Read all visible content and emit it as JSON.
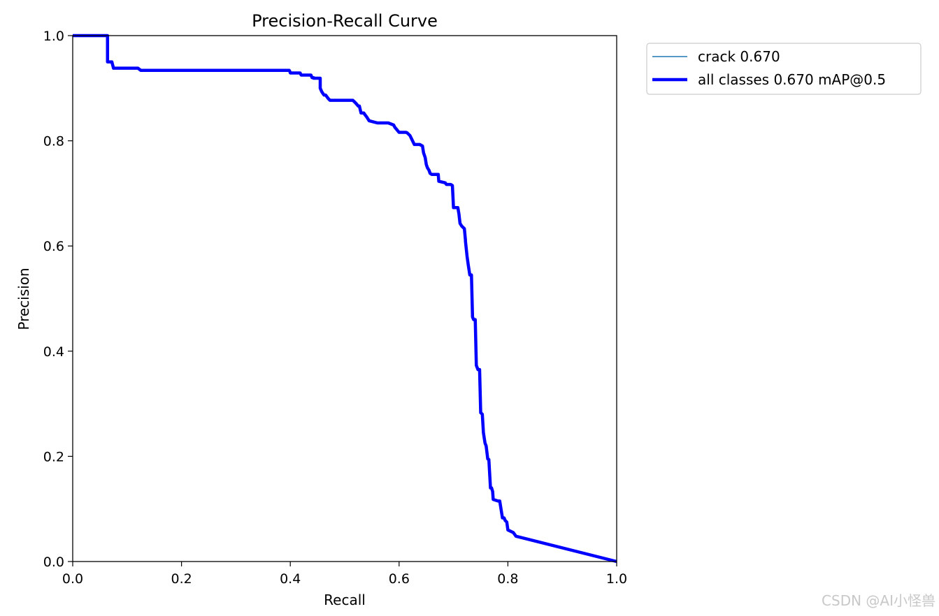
{
  "chart_data": {
    "type": "line",
    "title": "Precision-Recall Curve",
    "xlabel": "Recall",
    "ylabel": "Precision",
    "xlim": [
      0,
      1
    ],
    "ylim": [
      0,
      1
    ],
    "xticks": [
      "0.0",
      "0.2",
      "0.4",
      "0.6",
      "0.8",
      "1.0"
    ],
    "yticks": [
      "0.0",
      "0.2",
      "0.4",
      "0.6",
      "0.8",
      "1.0"
    ],
    "grid": false,
    "legend_position": "outside-top-right",
    "series": [
      {
        "name": "crack 0.670",
        "color": "#1f77b4",
        "x": [
          0,
          0.064,
          0.064,
          0.066,
          0.072,
          0.075,
          0.12,
          0.125,
          0.398,
          0.4,
          0.4,
          0.418,
          0.42,
          0.438,
          0.44,
          0.443,
          0.443,
          0.455,
          0.455,
          0.458,
          0.462,
          0.465,
          0.47,
          0.473,
          0.485,
          0.515,
          0.52,
          0.525,
          0.527,
          0.53,
          0.535,
          0.537,
          0.54,
          0.545,
          0.56,
          0.58,
          0.58,
          0.59,
          0.592,
          0.6,
          0.613,
          0.615,
          0.62,
          0.628,
          0.63,
          0.638,
          0.643,
          0.645,
          0.648,
          0.65,
          0.652,
          0.655,
          0.657,
          0.66,
          0.665,
          0.672,
          0.673,
          0.685,
          0.687,
          0.695,
          0.698,
          0.7,
          0.708,
          0.71,
          0.712,
          0.715,
          0.72,
          0.722,
          0.722,
          0.725,
          0.727,
          0.73,
          0.733,
          0.735,
          0.737,
          0.74,
          0.742,
          0.745,
          0.748,
          0.75,
          0.753,
          0.755,
          0.758,
          0.76,
          0.763,
          0.765,
          0.768,
          0.77,
          0.772,
          0.773,
          0.782,
          0.785,
          0.79,
          0.793,
          0.795,
          0.798,
          0.8,
          0.81,
          0.815,
          1.0
        ],
        "y": [
          1.0,
          1.0,
          0.95,
          0.95,
          0.95,
          0.938,
          0.938,
          0.934,
          0.934,
          0.93,
          0.929,
          0.929,
          0.925,
          0.925,
          0.92,
          0.92,
          0.919,
          0.919,
          0.9,
          0.893,
          0.887,
          0.887,
          0.88,
          0.877,
          0.877,
          0.877,
          0.872,
          0.866,
          0.866,
          0.853,
          0.853,
          0.85,
          0.846,
          0.838,
          0.834,
          0.834,
          0.834,
          0.83,
          0.826,
          0.816,
          0.816,
          0.815,
          0.81,
          0.793,
          0.793,
          0.793,
          0.79,
          0.777,
          0.768,
          0.755,
          0.749,
          0.744,
          0.738,
          0.736,
          0.736,
          0.736,
          0.723,
          0.72,
          0.717,
          0.717,
          0.715,
          0.673,
          0.673,
          0.661,
          0.643,
          0.638,
          0.633,
          0.611,
          0.609,
          0.58,
          0.565,
          0.545,
          0.545,
          0.465,
          0.46,
          0.46,
          0.373,
          0.365,
          0.365,
          0.283,
          0.28,
          0.245,
          0.225,
          0.22,
          0.195,
          0.194,
          0.14,
          0.14,
          0.133,
          0.118,
          0.115,
          0.115,
          0.083,
          0.083,
          0.078,
          0.075,
          0.06,
          0.055,
          0.048,
          0.0
        ]
      },
      {
        "name": "all classes 0.670 mAP@0.5",
        "color": "#0000ff",
        "x": [
          0,
          0.064,
          0.064,
          0.066,
          0.072,
          0.075,
          0.12,
          0.125,
          0.398,
          0.4,
          0.4,
          0.418,
          0.42,
          0.438,
          0.44,
          0.443,
          0.443,
          0.455,
          0.455,
          0.458,
          0.462,
          0.465,
          0.47,
          0.473,
          0.485,
          0.515,
          0.52,
          0.525,
          0.527,
          0.53,
          0.535,
          0.537,
          0.54,
          0.545,
          0.56,
          0.58,
          0.58,
          0.59,
          0.592,
          0.6,
          0.613,
          0.615,
          0.62,
          0.628,
          0.63,
          0.638,
          0.643,
          0.645,
          0.648,
          0.65,
          0.652,
          0.655,
          0.657,
          0.66,
          0.665,
          0.672,
          0.673,
          0.685,
          0.687,
          0.695,
          0.698,
          0.7,
          0.708,
          0.71,
          0.712,
          0.715,
          0.72,
          0.722,
          0.722,
          0.725,
          0.727,
          0.73,
          0.733,
          0.735,
          0.737,
          0.74,
          0.742,
          0.745,
          0.748,
          0.75,
          0.753,
          0.755,
          0.758,
          0.76,
          0.763,
          0.765,
          0.768,
          0.77,
          0.772,
          0.773,
          0.782,
          0.785,
          0.79,
          0.793,
          0.795,
          0.798,
          0.8,
          0.81,
          0.815,
          1.0
        ],
        "y": [
          1.0,
          1.0,
          0.95,
          0.95,
          0.95,
          0.938,
          0.938,
          0.934,
          0.934,
          0.93,
          0.929,
          0.929,
          0.925,
          0.925,
          0.92,
          0.92,
          0.919,
          0.919,
          0.9,
          0.893,
          0.887,
          0.887,
          0.88,
          0.877,
          0.877,
          0.877,
          0.872,
          0.866,
          0.866,
          0.853,
          0.853,
          0.85,
          0.846,
          0.838,
          0.834,
          0.834,
          0.834,
          0.83,
          0.826,
          0.816,
          0.816,
          0.815,
          0.81,
          0.793,
          0.793,
          0.793,
          0.79,
          0.777,
          0.768,
          0.755,
          0.749,
          0.744,
          0.738,
          0.736,
          0.736,
          0.736,
          0.723,
          0.72,
          0.717,
          0.717,
          0.715,
          0.673,
          0.673,
          0.661,
          0.643,
          0.638,
          0.633,
          0.611,
          0.609,
          0.58,
          0.565,
          0.545,
          0.545,
          0.465,
          0.46,
          0.46,
          0.373,
          0.365,
          0.365,
          0.283,
          0.28,
          0.245,
          0.225,
          0.22,
          0.195,
          0.194,
          0.14,
          0.14,
          0.133,
          0.118,
          0.115,
          0.115,
          0.083,
          0.083,
          0.078,
          0.075,
          0.06,
          0.055,
          0.048,
          0.0
        ]
      }
    ]
  },
  "watermark": "CSDN @AI小怪兽"
}
